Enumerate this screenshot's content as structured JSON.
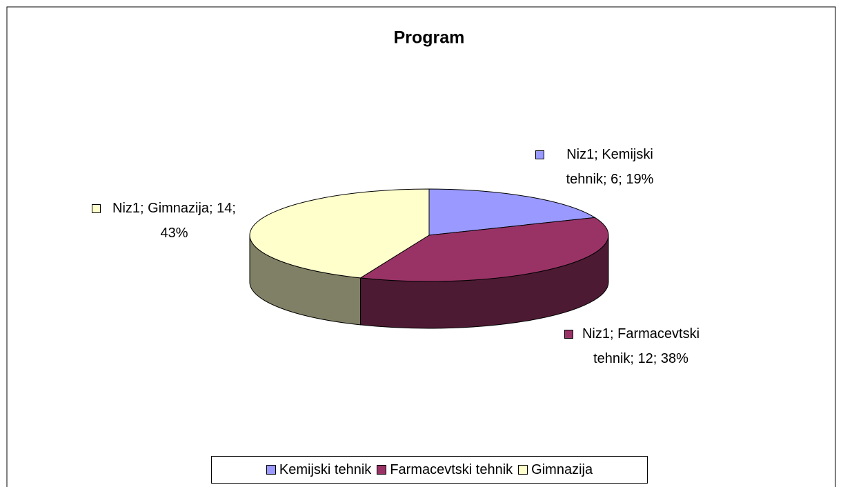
{
  "chart_data": {
    "type": "pie",
    "title": "Program",
    "categories": [
      "Kemijski tehnik",
      "Farmacevtski tehnik",
      "Gimnazija"
    ],
    "values": [
      6,
      12,
      14
    ],
    "value_labels": [
      "Niz1; Kemijski tehnik; 6; 19%",
      "Niz1; Farmacevtski tehnik; 12; 38%",
      "Niz1; Gimnazija; 14; 43%"
    ],
    "colors": [
      "#9999ff",
      "#993366",
      "#ffffcc"
    ],
    "legend": "bottom"
  }
}
